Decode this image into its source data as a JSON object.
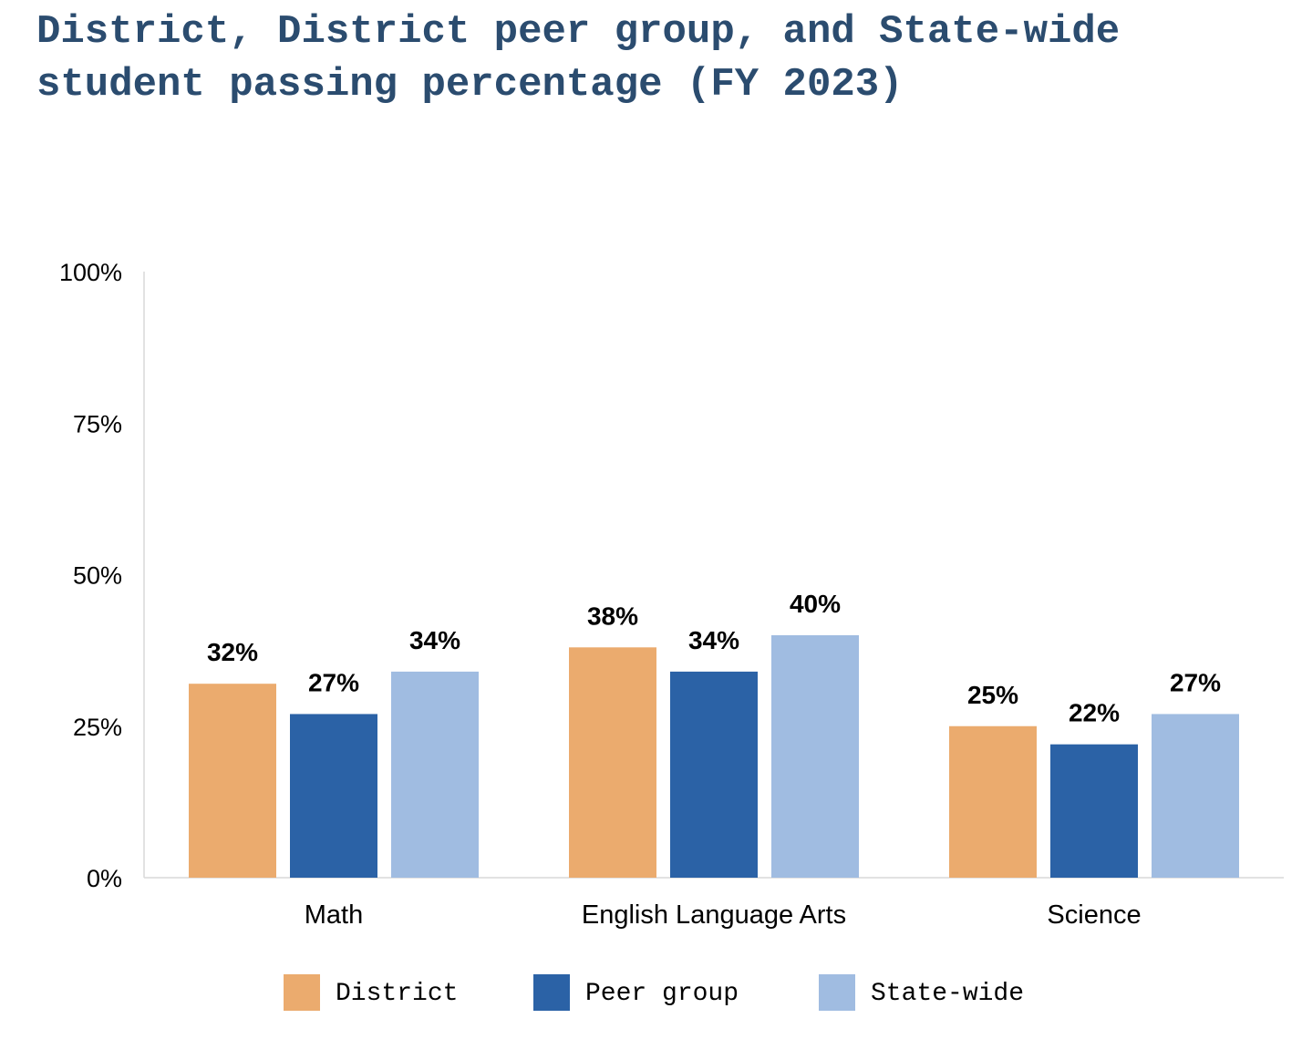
{
  "chart_data": {
    "type": "bar",
    "title": "District, District peer group, and State-wide student passing percentage (FY 2023)",
    "categories": [
      "Math",
      "English Language Arts",
      "Science"
    ],
    "series": [
      {
        "name": "District",
        "color": "#ebab6e",
        "values": [
          32,
          38,
          25
        ],
        "labels": [
          "32%",
          "38%",
          "25%"
        ]
      },
      {
        "name": "Peer group",
        "color": "#2b62a6",
        "values": [
          27,
          34,
          22
        ],
        "labels": [
          "27%",
          "34%",
          "22%"
        ]
      },
      {
        "name": "State-wide",
        "color": "#a0bce1",
        "values": [
          34,
          40,
          27
        ],
        "labels": [
          "34%",
          "40%",
          "27%"
        ]
      }
    ],
    "ylim": [
      0,
      100
    ],
    "yticks": [
      0,
      25,
      50,
      75,
      100
    ],
    "ytick_labels": [
      "0%",
      "25%",
      "50%",
      "75%",
      "100%"
    ],
    "xlabel": "",
    "ylabel": "",
    "grid": false,
    "legend_position": "bottom"
  }
}
